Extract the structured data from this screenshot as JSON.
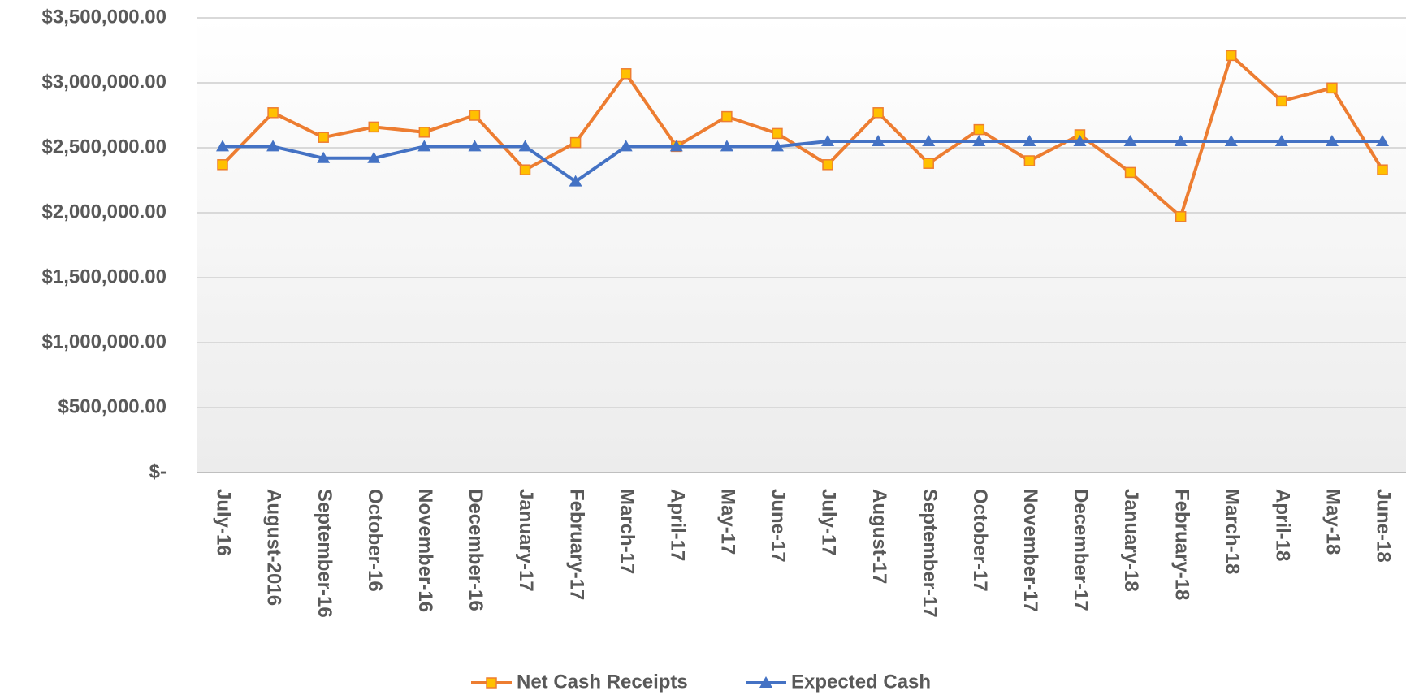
{
  "chart_data": {
    "type": "line",
    "categories": [
      "July-16",
      "August-2016",
      "September-16",
      "October-16",
      "November-16",
      "December-16",
      "January-17",
      "February-17",
      "March-17",
      "April-17",
      "May-17",
      "June-17",
      "July-17",
      "August-17",
      "September-17",
      "October-17",
      "November-17",
      "December-17",
      "January-18",
      "February-18",
      "March-18",
      "April-18",
      "May-18",
      "June-18"
    ],
    "series": [
      {
        "name": "Net Cash Receipts",
        "color": "#ED7D31",
        "marker_color": "#FFC000",
        "marker": "square",
        "values": [
          2370000,
          2770000,
          2580000,
          2660000,
          2620000,
          2750000,
          2330000,
          2540000,
          3070000,
          2510000,
          2740000,
          2610000,
          2370000,
          2770000,
          2380000,
          2640000,
          2400000,
          2600000,
          2310000,
          1970000,
          3210000,
          2860000,
          2960000,
          2330000
        ]
      },
      {
        "name": "Expected Cash",
        "color": "#4472C4",
        "marker_color": "#4472C4",
        "marker": "triangle",
        "values": [
          2510000,
          2510000,
          2420000,
          2420000,
          2510000,
          2510000,
          2510000,
          2240000,
          2510000,
          2510000,
          2510000,
          2510000,
          2550000,
          2550000,
          2550000,
          2550000,
          2550000,
          2550000,
          2550000,
          2550000,
          2550000,
          2550000,
          2550000,
          2550000
        ]
      }
    ],
    "ylim": [
      0,
      3500000
    ],
    "yticks": [
      {
        "value": 0,
        "label": "$-"
      },
      {
        "value": 500000,
        "label": "$500,000.00"
      },
      {
        "value": 1000000,
        "label": "$1,000,000.00"
      },
      {
        "value": 1500000,
        "label": "$1,500,000.00"
      },
      {
        "value": 2000000,
        "label": "$2,000,000.00"
      },
      {
        "value": 2500000,
        "label": "$2,500,000.00"
      },
      {
        "value": 3000000,
        "label": "$3,000,000.00"
      },
      {
        "value": 3500000,
        "label": "$3,500,000.00"
      }
    ],
    "grid": true,
    "legend": "bottom"
  }
}
